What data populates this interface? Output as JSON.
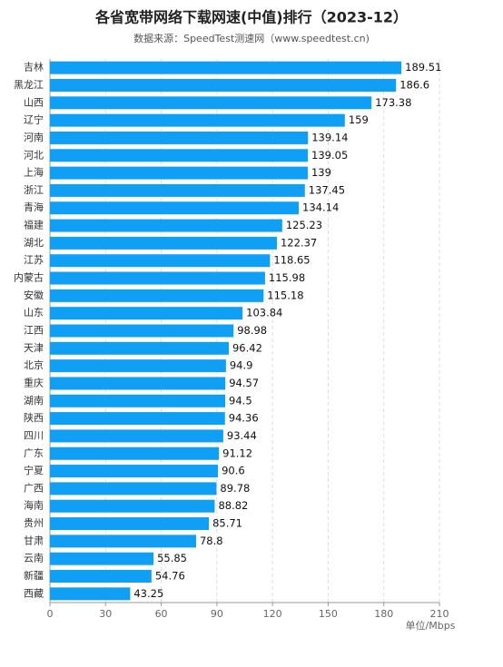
{
  "chart_data": {
    "type": "barh",
    "title": "各省宽带网络下载网速(中值)排行（2023-12）",
    "subtitle": "数据来源：SpeedTest测速网（www.speedtest.cn)",
    "x_label": "单位/Mbps",
    "categories": [
      "吉林",
      "黑龙江",
      "山西",
      "辽宁",
      "河南",
      "河北",
      "上海",
      "浙江",
      "青海",
      "福建",
      "湖北",
      "江苏",
      "内蒙古",
      "安徽",
      "山东",
      "江西",
      "天津",
      "北京",
      "重庆",
      "湖南",
      "陕西",
      "四川",
      "广东",
      "宁夏",
      "广西",
      "海南",
      "贵州",
      "甘肃",
      "云南",
      "新疆",
      "西藏"
    ],
    "values": [
      189.51,
      186.6,
      173.38,
      159,
      139.14,
      139.05,
      139,
      137.45,
      134.14,
      125.23,
      122.37,
      118.65,
      115.98,
      115.18,
      103.84,
      98.98,
      96.42,
      94.9,
      94.57,
      94.5,
      94.36,
      93.44,
      91.12,
      90.6,
      89.78,
      88.82,
      85.71,
      78.8,
      55.85,
      54.76,
      43.25
    ],
    "color": "#0fa0f5",
    "xlim": [
      0,
      210
    ],
    "xticks": [
      0,
      30,
      60,
      90,
      120,
      150,
      180,
      210
    ],
    "grid": true
  }
}
